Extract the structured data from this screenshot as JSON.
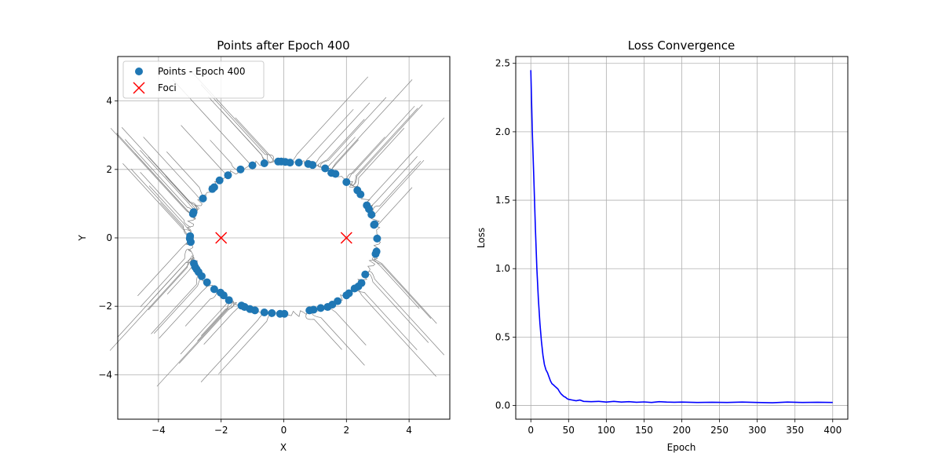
{
  "colors": {
    "points": "#1f77b4",
    "foci": "#ff0000",
    "trajectories": "#808080",
    "loss_line": "#0000ff",
    "grid": "#b0b0b0"
  },
  "chart_data": [
    {
      "type": "scatter",
      "title": "Points after Epoch 400",
      "xlabel": "X",
      "ylabel": "Y",
      "xlim": [
        -5.3,
        5.3
      ],
      "ylim": [
        -5.3,
        5.3
      ],
      "xticks": [
        -4,
        -2,
        0,
        2,
        4
      ],
      "yticks": [
        -4,
        -2,
        0,
        2,
        4
      ],
      "grid": true,
      "legend_position": "top-left",
      "ellipse": {
        "a": 3.0,
        "b": 2.24
      },
      "series": [
        {
          "name": "Points - Epoch 400",
          "marker": "circle",
          "points": [
            [
              -3.0,
              -0.02
            ],
            [
              -2.99,
              0.05
            ],
            [
              -2.97,
              -0.12
            ],
            [
              -2.9,
              0.7
            ],
            [
              -2.88,
              0.75
            ],
            [
              -2.87,
              -0.75
            ],
            [
              -2.83,
              -0.85
            ],
            [
              -2.78,
              -0.92
            ],
            [
              -2.72,
              -1.0
            ],
            [
              -2.62,
              -1.12
            ],
            [
              -2.58,
              1.15
            ],
            [
              -2.45,
              -1.3
            ],
            [
              -2.28,
              1.43
            ],
            [
              -2.22,
              1.48
            ],
            [
              -2.22,
              -1.5
            ],
            [
              -2.05,
              1.68
            ],
            [
              -2.02,
              -1.6
            ],
            [
              -1.92,
              -1.68
            ],
            [
              -1.78,
              1.83
            ],
            [
              -1.75,
              -1.82
            ],
            [
              -1.38,
              2.0
            ],
            [
              -1.35,
              -1.98
            ],
            [
              -1.25,
              -2.02
            ],
            [
              -1.08,
              -2.08
            ],
            [
              -1.0,
              2.12
            ],
            [
              -0.92,
              -2.12
            ],
            [
              -0.62,
              2.18
            ],
            [
              -0.62,
              -2.18
            ],
            [
              -0.38,
              -2.2
            ],
            [
              -0.18,
              2.23
            ],
            [
              -0.12,
              -2.22
            ],
            [
              -0.08,
              2.23
            ],
            [
              0.02,
              -2.22
            ],
            [
              0.05,
              2.22
            ],
            [
              0.2,
              2.2
            ],
            [
              0.48,
              2.2
            ],
            [
              0.78,
              2.16
            ],
            [
              0.82,
              -2.12
            ],
            [
              0.92,
              2.13
            ],
            [
              0.95,
              -2.1
            ],
            [
              1.18,
              -2.05
            ],
            [
              1.32,
              2.03
            ],
            [
              1.4,
              -2.02
            ],
            [
              1.52,
              1.9
            ],
            [
              1.55,
              -1.95
            ],
            [
              1.65,
              1.87
            ],
            [
              1.72,
              -1.85
            ],
            [
              2.0,
              1.63
            ],
            [
              2.0,
              -1.68
            ],
            [
              2.08,
              -1.62
            ],
            [
              2.26,
              -1.48
            ],
            [
              2.35,
              1.39
            ],
            [
              2.38,
              -1.42
            ],
            [
              2.45,
              1.27
            ],
            [
              2.48,
              -1.32
            ],
            [
              2.6,
              -1.07
            ],
            [
              2.65,
              0.95
            ],
            [
              2.72,
              0.84
            ],
            [
              2.8,
              0.68
            ],
            [
              2.88,
              0.38
            ],
            [
              2.9,
              0.4
            ],
            [
              2.93,
              -0.47
            ],
            [
              2.96,
              -0.4
            ],
            [
              2.98,
              -0.02
            ]
          ]
        },
        {
          "name": "Foci",
          "marker": "x",
          "points": [
            [
              -2,
              0
            ],
            [
              2,
              0
            ]
          ]
        }
      ]
    },
    {
      "type": "line",
      "title": "Loss Convergence",
      "xlabel": "Epoch",
      "ylabel": "Loss",
      "xlim": [
        -20,
        420
      ],
      "ylim": [
        -0.1,
        2.55
      ],
      "xticks": [
        0,
        50,
        100,
        150,
        200,
        250,
        300,
        350,
        400
      ],
      "yticks": [
        0.0,
        0.5,
        1.0,
        1.5,
        2.0,
        2.5
      ],
      "ytick_labels": [
        "0.0",
        "0.5",
        "1.0",
        "1.5",
        "2.0",
        "2.5"
      ],
      "grid": true,
      "series": [
        {
          "x": [
            0,
            2,
            4,
            6,
            8,
            10,
            12,
            14,
            16,
            18,
            20,
            22,
            24,
            26,
            28,
            30,
            32,
            34,
            36,
            38,
            40,
            42,
            44,
            46,
            48,
            50,
            55,
            60,
            65,
            70,
            80,
            90,
            100,
            110,
            120,
            130,
            140,
            150,
            160,
            170,
            180,
            190,
            200,
            220,
            240,
            260,
            280,
            300,
            320,
            340,
            360,
            380,
            400
          ],
          "y": [
            2.45,
            2.0,
            1.65,
            1.3,
            1.0,
            0.78,
            0.6,
            0.47,
            0.37,
            0.3,
            0.26,
            0.24,
            0.21,
            0.18,
            0.16,
            0.15,
            0.14,
            0.13,
            0.12,
            0.1,
            0.085,
            0.075,
            0.065,
            0.06,
            0.05,
            0.045,
            0.04,
            0.035,
            0.04,
            0.03,
            0.028,
            0.03,
            0.025,
            0.03,
            0.025,
            0.028,
            0.024,
            0.026,
            0.022,
            0.028,
            0.025,
            0.024,
            0.025,
            0.022,
            0.024,
            0.022,
            0.025,
            0.022,
            0.02,
            0.025,
            0.022,
            0.024,
            0.022
          ]
        }
      ]
    }
  ]
}
